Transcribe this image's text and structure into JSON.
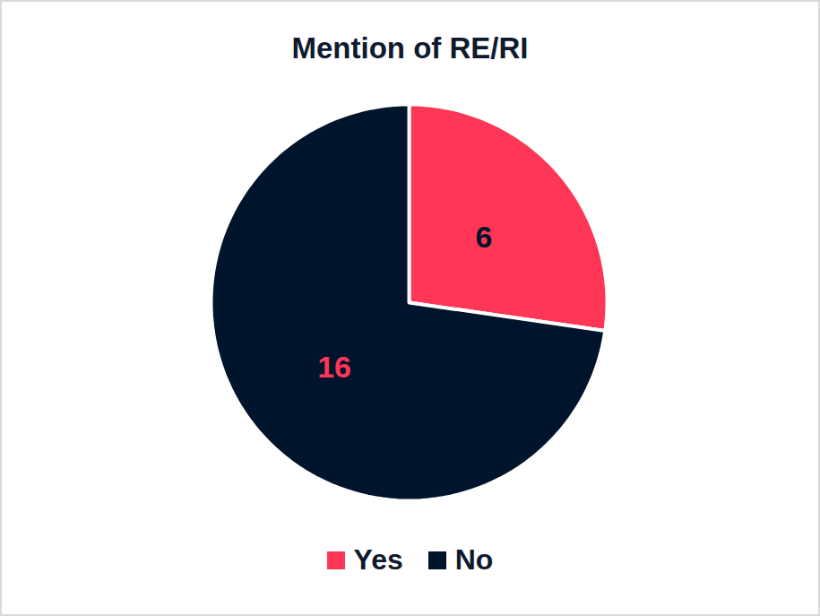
{
  "chart_data": {
    "type": "pie",
    "title": "Mention of RE/RI",
    "categories": [
      "Yes",
      "No"
    ],
    "values": [
      6,
      16
    ],
    "colors": [
      "#ff3655",
      "#00142b"
    ],
    "data_labels": true,
    "legend": "bottom"
  }
}
